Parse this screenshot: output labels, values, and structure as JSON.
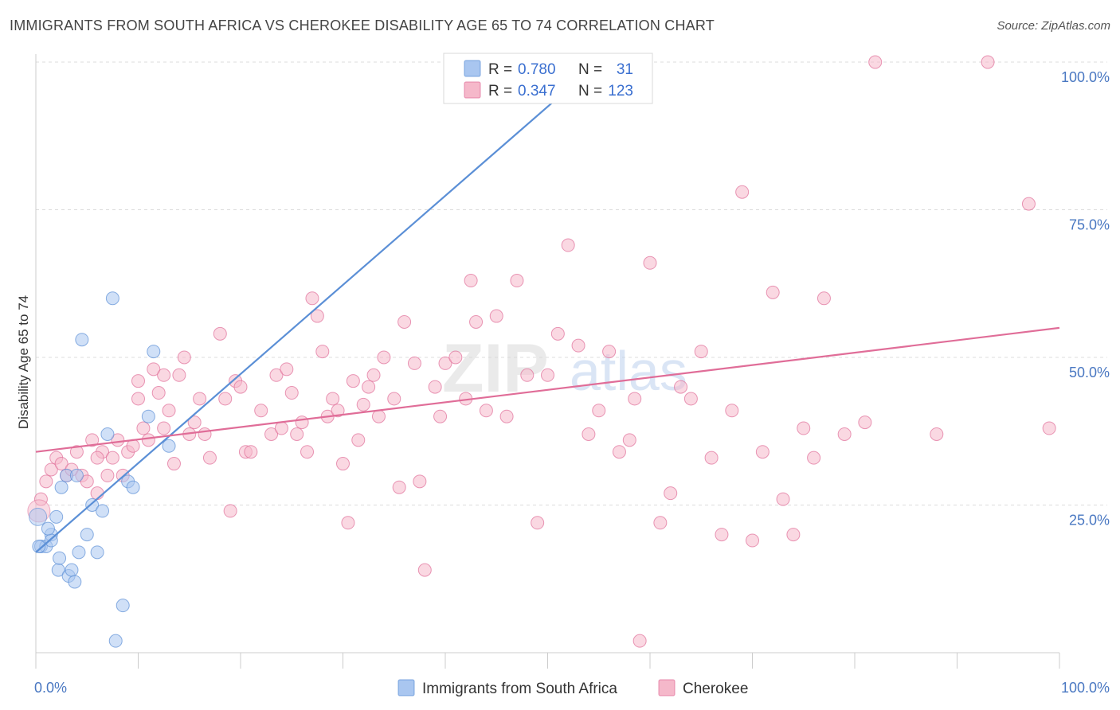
{
  "title": "IMMIGRANTS FROM SOUTH AFRICA VS CHEROKEE DISABILITY AGE 65 TO 74 CORRELATION CHART",
  "source": "Source: ZipAtlas.com",
  "watermark": {
    "zip": "ZIP",
    "atlas": "atlas"
  },
  "legend_top": {
    "rows": [
      {
        "r_label": "R =",
        "r_value": "0.780",
        "n_label": "N =",
        "n_value": "31",
        "color": "#a9c6f0"
      },
      {
        "r_label": "R =",
        "r_value": "0.347",
        "n_label": "N =",
        "n_value": "123",
        "color": "#f5b8ca"
      }
    ]
  },
  "legend_bottom": {
    "items": [
      {
        "label": "Immigrants from South Africa",
        "color": "#a9c6f0"
      },
      {
        "label": "Cherokee",
        "color": "#f5b8ca"
      }
    ]
  },
  "chart_data": {
    "type": "scatter",
    "title": "IMMIGRANTS FROM SOUTH AFRICA VS CHEROKEE DISABILITY AGE 65 TO 74 CORRELATION CHART",
    "xlabel": "",
    "ylabel": "Disability Age 65 to 74",
    "xlim": [
      0,
      100
    ],
    "ylim": [
      0,
      100
    ],
    "x_tick_labels": [
      "0.0%",
      "100.0%"
    ],
    "y_tick_labels": [
      "25.0%",
      "50.0%",
      "75.0%",
      "100.0%"
    ],
    "y_ticks": [
      25,
      50,
      75,
      100
    ],
    "grid": "horizontal dashed",
    "series": [
      {
        "name": "Immigrants from South Africa",
        "color": "#5b8fd6",
        "fill": "#a9c6f0",
        "trend": {
          "x": [
            0,
            55
          ],
          "y": [
            17,
            100
          ]
        },
        "points": [
          [
            0.5,
            18
          ],
          [
            1,
            18
          ],
          [
            1.5,
            20
          ],
          [
            1.5,
            19
          ],
          [
            2,
            23
          ],
          [
            2.2,
            14
          ],
          [
            2.3,
            16
          ],
          [
            2.5,
            28
          ],
          [
            3,
            30
          ],
          [
            3.2,
            13
          ],
          [
            3.5,
            14
          ],
          [
            3.8,
            12
          ],
          [
            4,
            30
          ],
          [
            4.2,
            17
          ],
          [
            4.5,
            53
          ],
          [
            5,
            20
          ],
          [
            5.5,
            25
          ],
          [
            6,
            17
          ],
          [
            6.5,
            24
          ],
          [
            7,
            37
          ],
          [
            7.5,
            60
          ],
          [
            7.8,
            2
          ],
          [
            8.5,
            8
          ],
          [
            9,
            29
          ],
          [
            9.5,
            28
          ],
          [
            11,
            40
          ],
          [
            11.5,
            51
          ],
          [
            13,
            35
          ],
          [
            55,
            100
          ],
          [
            0.3,
            18
          ],
          [
            1.2,
            21
          ]
        ]
      },
      {
        "name": "Cherokee",
        "color": "#e06d98",
        "fill": "#f5b8ca",
        "trend": {
          "x": [
            0,
            100
          ],
          "y": [
            34,
            55
          ]
        },
        "points": [
          [
            0.5,
            26
          ],
          [
            1,
            29
          ],
          [
            1.5,
            31
          ],
          [
            2,
            33
          ],
          [
            2.5,
            32
          ],
          [
            3,
            30
          ],
          [
            3.5,
            31
          ],
          [
            4,
            34
          ],
          [
            4.5,
            30
          ],
          [
            5,
            29
          ],
          [
            5.5,
            36
          ],
          [
            6,
            27
          ],
          [
            6.5,
            34
          ],
          [
            7,
            30
          ],
          [
            7.5,
            33
          ],
          [
            8,
            36
          ],
          [
            8.5,
            30
          ],
          [
            9,
            34
          ],
          [
            9.5,
            35
          ],
          [
            10,
            43
          ],
          [
            10.5,
            38
          ],
          [
            11,
            36
          ],
          [
            11.5,
            48
          ],
          [
            12,
            44
          ],
          [
            12.5,
            38
          ],
          [
            13,
            41
          ],
          [
            13.5,
            32
          ],
          [
            14,
            47
          ],
          [
            14.5,
            50
          ],
          [
            15,
            37
          ],
          [
            15.5,
            39
          ],
          [
            16,
            43
          ],
          [
            16.5,
            37
          ],
          [
            17,
            33
          ],
          [
            18,
            54
          ],
          [
            18.5,
            43
          ],
          [
            19,
            24
          ],
          [
            19.5,
            46
          ],
          [
            20,
            45
          ],
          [
            20.5,
            34
          ],
          [
            21,
            34
          ],
          [
            22,
            41
          ],
          [
            23,
            37
          ],
          [
            23.5,
            47
          ],
          [
            24,
            38
          ],
          [
            24.5,
            48
          ],
          [
            25,
            44
          ],
          [
            25.5,
            37
          ],
          [
            26,
            39
          ],
          [
            26.5,
            34
          ],
          [
            27,
            60
          ],
          [
            27.5,
            57
          ],
          [
            28,
            51
          ],
          [
            28.5,
            40
          ],
          [
            29,
            43
          ],
          [
            29.5,
            41
          ],
          [
            30,
            32
          ],
          [
            30.5,
            22
          ],
          [
            31,
            46
          ],
          [
            31.5,
            36
          ],
          [
            32,
            42
          ],
          [
            32.5,
            45
          ],
          [
            33,
            47
          ],
          [
            33.5,
            40
          ],
          [
            34,
            50
          ],
          [
            35,
            43
          ],
          [
            35.5,
            28
          ],
          [
            36,
            56
          ],
          [
            37,
            49
          ],
          [
            37.5,
            29
          ],
          [
            38,
            14
          ],
          [
            39,
            45
          ],
          [
            39.5,
            40
          ],
          [
            40,
            49
          ],
          [
            41,
            50
          ],
          [
            42,
            43
          ],
          [
            42.5,
            63
          ],
          [
            43,
            56
          ],
          [
            44,
            41
          ],
          [
            45,
            57
          ],
          [
            46,
            40
          ],
          [
            47,
            63
          ],
          [
            48,
            47
          ],
          [
            49,
            22
          ],
          [
            50,
            47
          ],
          [
            51,
            54
          ],
          [
            52,
            69
          ],
          [
            53,
            52
          ],
          [
            54,
            37
          ],
          [
            55,
            41
          ],
          [
            56,
            51
          ],
          [
            57,
            34
          ],
          [
            58,
            36
          ],
          [
            58.5,
            43
          ],
          [
            59,
            2
          ],
          [
            60,
            66
          ],
          [
            61,
            22
          ],
          [
            62,
            27
          ],
          [
            63,
            45
          ],
          [
            64,
            43
          ],
          [
            65,
            51
          ],
          [
            66,
            33
          ],
          [
            67,
            20
          ],
          [
            68,
            41
          ],
          [
            69,
            78
          ],
          [
            70,
            19
          ],
          [
            71,
            34
          ],
          [
            72,
            61
          ],
          [
            73,
            26
          ],
          [
            74,
            20
          ],
          [
            75,
            38
          ],
          [
            76,
            33
          ],
          [
            77,
            60
          ],
          [
            79,
            37
          ],
          [
            81,
            39
          ],
          [
            82,
            100
          ],
          [
            88,
            37
          ],
          [
            93,
            100
          ],
          [
            97,
            76
          ],
          [
            99,
            38
          ],
          [
            10,
            46
          ],
          [
            6,
            33
          ],
          [
            12.5,
            47
          ]
        ]
      }
    ]
  }
}
